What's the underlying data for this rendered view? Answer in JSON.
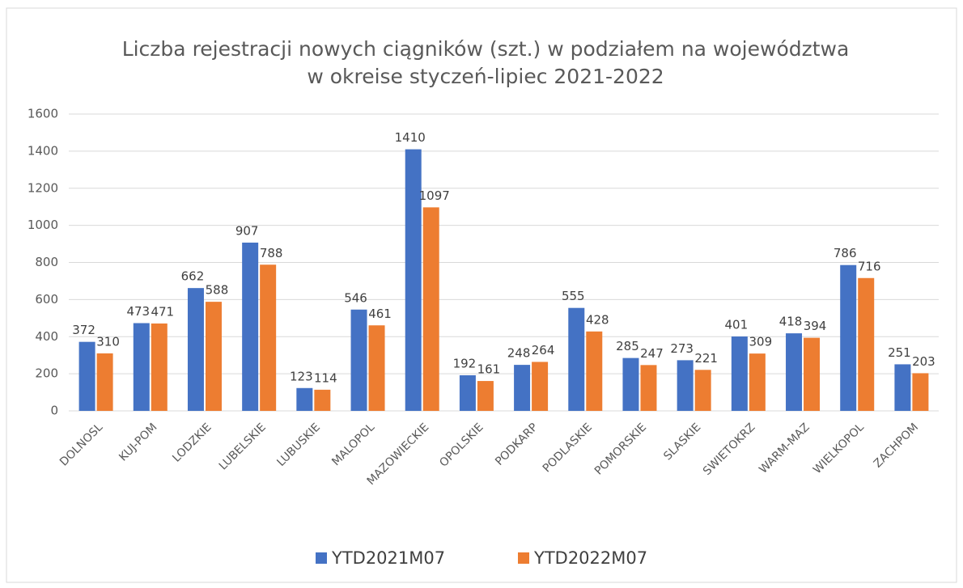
{
  "chart_data": {
    "type": "bar",
    "title": [
      "Liczba rejestracji nowych ciągników (szt.) w podziałem na województwa",
      "w okreise styczeń-lipiec 2021-2022"
    ],
    "categories": [
      "DOLNOSL",
      "KUJ-POM",
      "LODZKIE",
      "LUBELSKIE",
      "LUBUSKIE",
      "MALOPOL",
      "MAZOWIECKIE",
      "OPOLSKIE",
      "PODKARP",
      "PODLASKIE",
      "POMORSKIE",
      "SLASKIE",
      "SWIETOKRZ",
      "WARM-MAZ",
      "WIELKOPOL",
      "ZACHPOM"
    ],
    "series": [
      {
        "name": "YTD2021M07",
        "color": "#4472c4",
        "values": [
          372,
          473,
          662,
          907,
          123,
          546,
          1410,
          192,
          248,
          555,
          285,
          273,
          401,
          418,
          786,
          251
        ]
      },
      {
        "name": "YTD2022M07",
        "color": "#ed7d31",
        "values": [
          310,
          471,
          588,
          788,
          114,
          461,
          1097,
          161,
          264,
          428,
          247,
          221,
          309,
          394,
          716,
          203
        ]
      }
    ],
    "ylim": [
      0,
      1600
    ],
    "yticks": [
      0,
      200,
      400,
      600,
      800,
      1000,
      1200,
      1400,
      1600
    ],
    "grid": true,
    "legend": "bottom"
  }
}
